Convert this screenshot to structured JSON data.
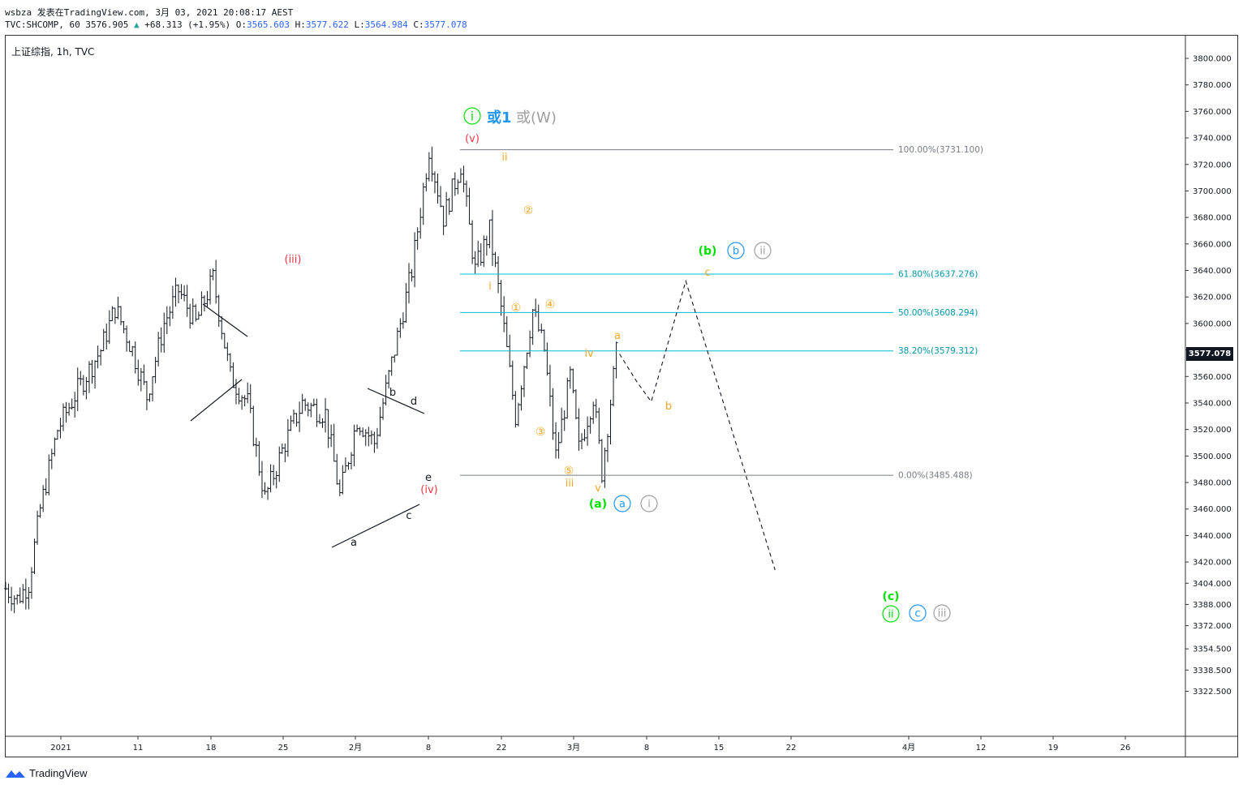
{
  "header": {
    "line1": "wsbza 发表在TradingView.com, 3月 03, 2021 20:08:17 AEST",
    "line2_prefix": "TVC:SHCOMP, 60 3576.905",
    "line2_arrow": "▲",
    "line2_change": "+68.313 (+1.95%)",
    "o_label": "O:",
    "o_value": "3565.603",
    "h_label": "H:",
    "h_value": "3577.622",
    "l_label": "L:",
    "l_value": "3564.984",
    "c_label": "C:",
    "c_value": "3577.078"
  },
  "symbol_label": "上证综指, 1h, TVC",
  "last_price": "3577.078",
  "brand": "TradingView",
  "colors": {
    "candle": "#131722",
    "fib_gray": "#787b86",
    "fib_teal": "#00bcd4",
    "wave_red": "#f23645",
    "wave_orange": "#f5a623",
    "wave_green": "#00e000",
    "wave_blue": "#2196f3",
    "wave_gray": "#9e9e9e"
  },
  "chart_data": {
    "type": "candlestick",
    "title": "上证综指, 1h, TVC",
    "y_axis": {
      "range": [
        3307,
        3812
      ],
      "ticks": [
        "3800.000",
        "3780.000",
        "3760.000",
        "3740.000",
        "3720.000",
        "3700.000",
        "3680.000",
        "3660.000",
        "3640.000",
        "3620.000",
        "3600.000",
        "3580.000",
        "3560.000",
        "3540.000",
        "3520.000",
        "3500.000",
        "3480.000",
        "3460.000",
        "3440.000",
        "3420.000",
        "3404.000",
        "3388.000",
        "3372.000",
        "3354.500",
        "3338.500",
        "3322.500"
      ]
    },
    "x_axis": {
      "ticks": [
        "2021",
        "11",
        "18",
        "25",
        "2月",
        "8",
        "22",
        "3月",
        "8",
        "15",
        "22",
        "4月",
        "12",
        "19",
        "26"
      ]
    },
    "price_path_approx": [
      [
        0,
        3400
      ],
      [
        4,
        3392
      ],
      [
        8,
        3404
      ],
      [
        12,
        3460
      ],
      [
        18,
        3520
      ],
      [
        25,
        3550
      ],
      [
        33,
        3580
      ],
      [
        38,
        3612
      ],
      [
        44,
        3580
      ],
      [
        49,
        3545
      ],
      [
        55,
        3600
      ],
      [
        60,
        3625
      ],
      [
        66,
        3600
      ],
      [
        72,
        3634
      ],
      [
        78,
        3560
      ],
      [
        84,
        3540
      ],
      [
        90,
        3468
      ],
      [
        97,
        3510
      ],
      [
        103,
        3540
      ],
      [
        111,
        3532
      ],
      [
        116,
        3470
      ],
      [
        122,
        3528
      ],
      [
        128,
        3510
      ],
      [
        134,
        3570
      ],
      [
        141,
        3640
      ],
      [
        147,
        3732
      ],
      [
        152,
        3680
      ],
      [
        158,
        3720
      ],
      [
        163,
        3640
      ],
      [
        168,
        3670
      ],
      [
        172,
        3612
      ],
      [
        177,
        3530
      ],
      [
        183,
        3610
      ],
      [
        187,
        3580
      ],
      [
        191,
        3500
      ],
      [
        196,
        3560
      ],
      [
        199,
        3505
      ],
      [
        204,
        3545
      ],
      [
        207,
        3488
      ],
      [
        212,
        3577
      ]
    ],
    "fibonacci": [
      {
        "level": "100.00%",
        "value": 3731.1,
        "label": "100.00%(3731.100)"
      },
      {
        "level": "61.80%",
        "value": 3637.276,
        "label": "61.80%(3637.276)"
      },
      {
        "level": "50.00%",
        "value": 3608.294,
        "label": "50.00%(3608.294)"
      },
      {
        "level": "38.20%",
        "value": 3579.312,
        "label": "38.20%(3579.312)"
      },
      {
        "level": "0.00%",
        "value": 3485.488,
        "label": "0.00%(3485.488)"
      }
    ],
    "annotations": {
      "red": [
        "(iii)",
        "(iv)",
        "(v)"
      ],
      "black": [
        "a",
        "b",
        "c",
        "d",
        "e"
      ],
      "orange_roman": [
        "i",
        "ii",
        "iii",
        "iv",
        "v"
      ],
      "orange_circled": [
        "①",
        "②",
        "③",
        "④",
        "⑤"
      ],
      "orange_abc": [
        "a",
        "b",
        "c"
      ],
      "top_label": {
        "circled": "i",
        "blue": "或1",
        "gray": "或(W)"
      },
      "wave_a": {
        "paren": "(a)",
        "blue": "a",
        "gray": "i"
      },
      "wave_b": {
        "paren": "(b)",
        "blue": "b",
        "gray": "ii"
      },
      "wave_c": {
        "paren": "(c)",
        "green": "ii",
        "blue": "c",
        "gray": "iii"
      }
    },
    "projection": [
      [
        212,
        3577
      ],
      [
        218,
        3556
      ],
      [
        223,
        3541
      ],
      [
        235,
        3632
      ],
      [
        266,
        3414
      ]
    ],
    "grid": false,
    "legend": "none"
  }
}
